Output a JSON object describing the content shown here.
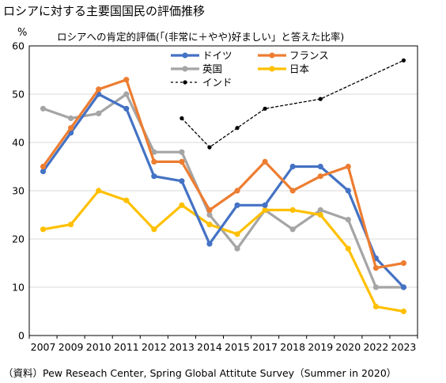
{
  "figure_title": "ロシアに対する主要国国民の評価推移",
  "source_note": "（資料）Pew Reseach Center, Spring Global Attitute Survey（Summer in 2020）",
  "colors": {
    "germany": "#4472C4",
    "france": "#ED7D31",
    "uk": "#A5A5A5",
    "japan": "#FFC000",
    "india": "#000000",
    "grid": "#d9d9d9",
    "axis": "#000000"
  },
  "chart_data": {
    "type": "line",
    "title": "ロシアへの肯定的評価(「(非常に＋やや)好ましい」と答えた比率)",
    "y_unit": "%",
    "xlabel": "",
    "ylabel": "",
    "ylim": [
      0,
      60
    ],
    "yticks": [
      0,
      10,
      20,
      30,
      40,
      50,
      60
    ],
    "grid": true,
    "legend_position": "top-right",
    "categories": [
      "2007",
      "2009",
      "2010",
      "2011",
      "2012",
      "2013",
      "2014",
      "2015",
      "2017",
      "2018",
      "2019",
      "2020",
      "2022",
      "2023"
    ],
    "series": [
      {
        "key": "germany",
        "name": "ドイツ",
        "style": "solid",
        "values": [
          34,
          42,
          50,
          47,
          33,
          32,
          19,
          27,
          27,
          35,
          35,
          30,
          16,
          10
        ]
      },
      {
        "key": "france",
        "name": "フランス",
        "style": "solid",
        "values": [
          35,
          43,
          51,
          53,
          36,
          36,
          26,
          30,
          36,
          30,
          33,
          35,
          14,
          15
        ]
      },
      {
        "key": "uk",
        "name": "英国",
        "style": "solid",
        "values": [
          47,
          45,
          46,
          50,
          38,
          38,
          25,
          18,
          26,
          22,
          26,
          24,
          10,
          10
        ]
      },
      {
        "key": "japan",
        "name": "日本",
        "style": "solid",
        "values": [
          22,
          23,
          30,
          28,
          22,
          27,
          23,
          21,
          26,
          26,
          25,
          18,
          6,
          5
        ]
      },
      {
        "key": "india",
        "name": "インド",
        "style": "dashed",
        "values": [
          null,
          null,
          null,
          null,
          null,
          45,
          39,
          43,
          47,
          null,
          49,
          null,
          null,
          57
        ]
      }
    ]
  }
}
